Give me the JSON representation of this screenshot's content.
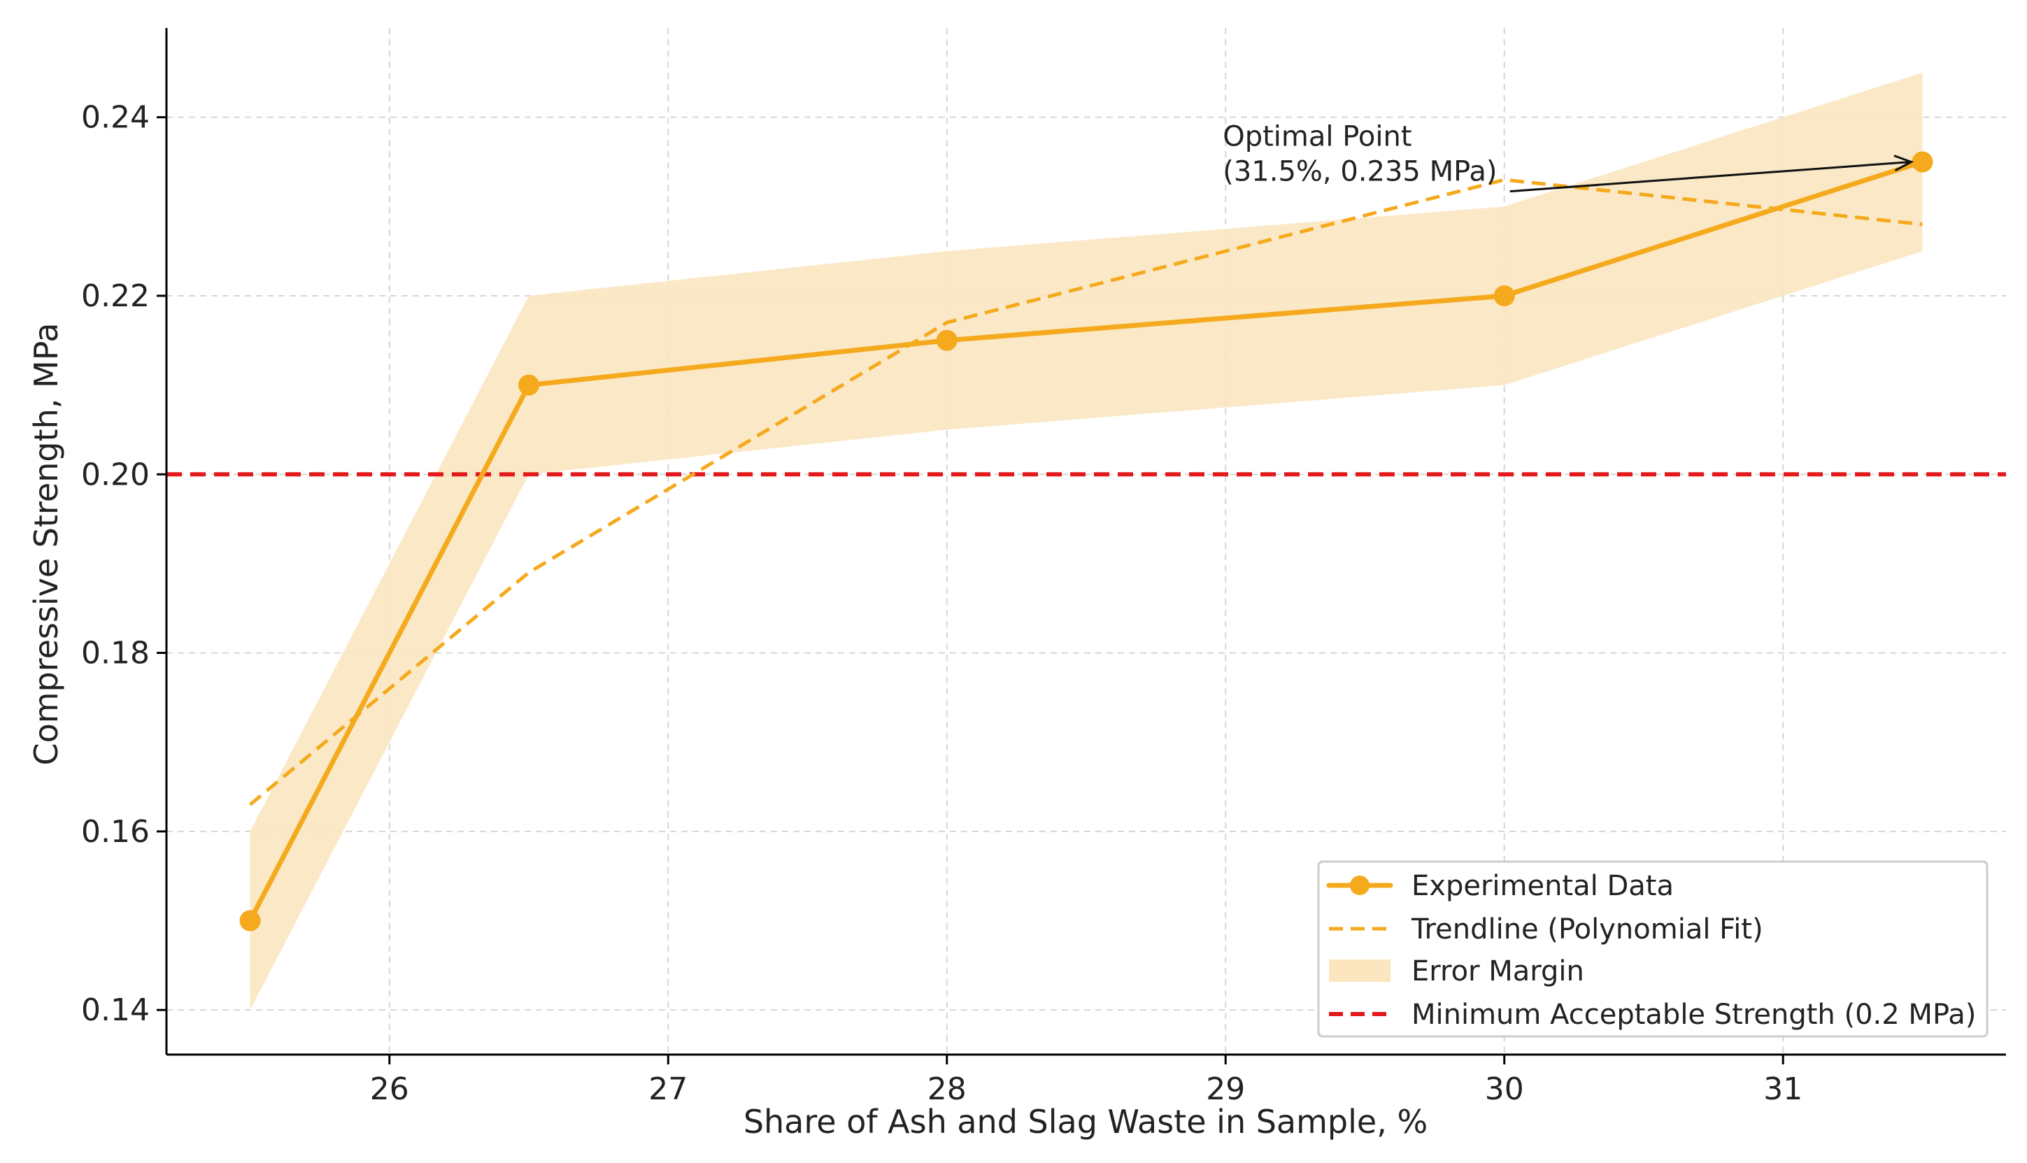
{
  "chart_data": {
    "type": "line",
    "title": "",
    "xlabel": "Share of Ash and Slag Waste in Sample, %",
    "ylabel": "Compressive Strength, MPa",
    "xlim": [
      25.2,
      31.8
    ],
    "ylim": [
      0.135,
      0.25
    ],
    "x_ticks": [
      26,
      27,
      28,
      29,
      30,
      31
    ],
    "y_ticks": [
      0.14,
      0.16,
      0.18,
      0.2,
      0.22,
      0.24
    ],
    "y_tick_labels": [
      "0.14",
      "0.16",
      "0.18",
      "0.20",
      "0.22",
      "0.24"
    ],
    "grid": true,
    "series": [
      {
        "name": "Experimental Data",
        "kind": "line-markers",
        "x": [
          25.5,
          26.5,
          28,
          30,
          31.5
        ],
        "values": [
          0.15,
          0.21,
          0.215,
          0.22,
          0.235
        ],
        "color": "#f5a91c"
      },
      {
        "name": "Trendline (Polynomial Fit)",
        "kind": "dashed-line",
        "x": [
          25.5,
          26.5,
          28,
          30,
          31.5
        ],
        "values": [
          0.163,
          0.189,
          0.217,
          0.233,
          0.228
        ],
        "color": "#f5a91c"
      },
      {
        "name": "Error Margin",
        "kind": "band",
        "x": [
          25.5,
          26.5,
          28,
          30,
          31.5
        ],
        "lower": [
          0.14,
          0.2,
          0.205,
          0.21,
          0.225
        ],
        "upper": [
          0.16,
          0.22,
          0.225,
          0.23,
          0.245
        ],
        "color": "#fbe6c0"
      },
      {
        "name": "Minimum Acceptable Strength (0.2 MPa)",
        "kind": "hline",
        "value": 0.2,
        "color": "#e31a1c"
      }
    ],
    "annotation": {
      "line1": "Optimal Point",
      "line2": "(31.5%, 0.235 MPa)",
      "text_x": 29.0,
      "text_y": 0.2335,
      "target_x": 31.5,
      "target_y": 0.235
    },
    "legend_position": "lower-right"
  }
}
